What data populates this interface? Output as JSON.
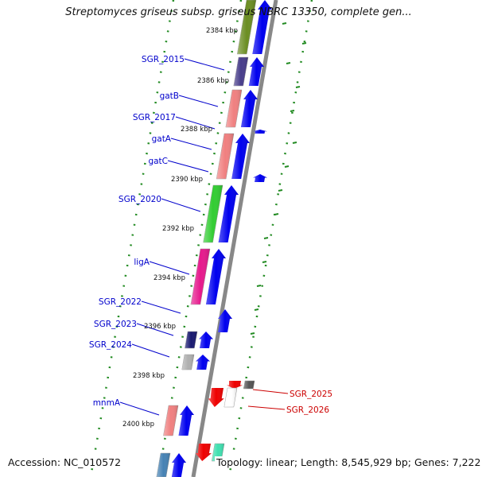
{
  "title": "Streptomyces griseus subsp. griseus NBRC 13350, complete gen...",
  "footer": {
    "accession": "Accession: NC_010572",
    "topology": "Topology: linear; Length: 8,545,929 bp; Genes: 7,222"
  },
  "colors": {
    "forward_arrow": "#0000ee",
    "reverse_arrow": "#ee0000",
    "label_forward": "#0000cc",
    "label_reverse": "#cc0000",
    "backbone": "#888888",
    "tick_dash": "#228B22"
  },
  "kbp_ticks": [
    "2384 kbp",
    "2386 kbp",
    "2388 kbp",
    "2390 kbp",
    "2392 kbp",
    "2394 kbp",
    "2396 kbp",
    "2398 kbp",
    "2400 kbp"
  ],
  "genes": [
    {
      "label": "",
      "strand": "+",
      "color": "#6b8e23"
    },
    {
      "label": "SGR_2015",
      "strand": "+",
      "color": "#483d8b"
    },
    {
      "label": "gatB",
      "strand": "+",
      "color": "#f08080"
    },
    {
      "label": "SGR_2017",
      "strand": "+",
      "color": "#f08080"
    },
    {
      "label": "gatA",
      "strand": "+",
      "color": "#f08080"
    },
    {
      "label": "gatC",
      "strand": "+",
      "color": "#f08080"
    },
    {
      "label": "SGR_2020",
      "strand": "+",
      "color": "#32cd32"
    },
    {
      "label": "ligA",
      "strand": "+",
      "color": "#e6198c"
    },
    {
      "label": "SGR_2022",
      "strand": "+",
      "color": "#ffffff"
    },
    {
      "label": "SGR_2023",
      "strand": "+",
      "color": "#191970"
    },
    {
      "label": "SGR_2024",
      "strand": "+",
      "color": "#b0b0b0"
    },
    {
      "label": "SGR_2025",
      "strand": "-",
      "color": "#555555"
    },
    {
      "label": "SGR_2026",
      "strand": "-",
      "color": "#ffffff"
    },
    {
      "label": "mnmA",
      "strand": "+",
      "color": "#f08080"
    },
    {
      "label": "",
      "strand": "-",
      "color": "#40e0b0"
    },
    {
      "label": "",
      "strand": "+",
      "color": "#4682b4"
    }
  ]
}
